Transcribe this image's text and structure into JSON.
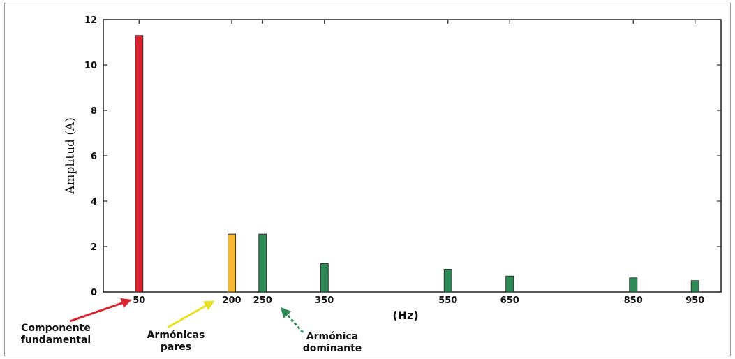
{
  "chart_data": {
    "type": "bar",
    "title": "",
    "xlabel": "(Hz)",
    "ylabel": "Amplitud (A)",
    "ylim": [
      0,
      12
    ],
    "yticks": [
      0,
      2,
      4,
      6,
      8,
      10,
      12
    ],
    "xlim": [
      0,
      1000
    ],
    "grid": false,
    "x": [
      50,
      200,
      250,
      350,
      550,
      650,
      850,
      950
    ],
    "x_tick_labels": [
      "50",
      "200",
      "250",
      "350",
      "550",
      "650",
      "850",
      "950"
    ],
    "values": [
      11.3,
      2.55,
      2.55,
      1.25,
      1.0,
      0.7,
      0.62,
      0.5
    ],
    "colors": [
      "#d9232e",
      "#f5b82e",
      "#2e8b57",
      "#2e8b57",
      "#2e8b57",
      "#2e8b57",
      "#2e8b57",
      "#2e8b57"
    ],
    "annotations": [
      {
        "lines": [
          "Componente",
          "fundamental"
        ],
        "target": 50,
        "color": "#d9232e"
      },
      {
        "lines": [
          "Armónicas",
          "pares"
        ],
        "target": 200,
        "color": "#e8e020"
      },
      {
        "lines": [
          "Armónica",
          "dominante"
        ],
        "target": 250,
        "color": "#2e8b57"
      }
    ]
  }
}
